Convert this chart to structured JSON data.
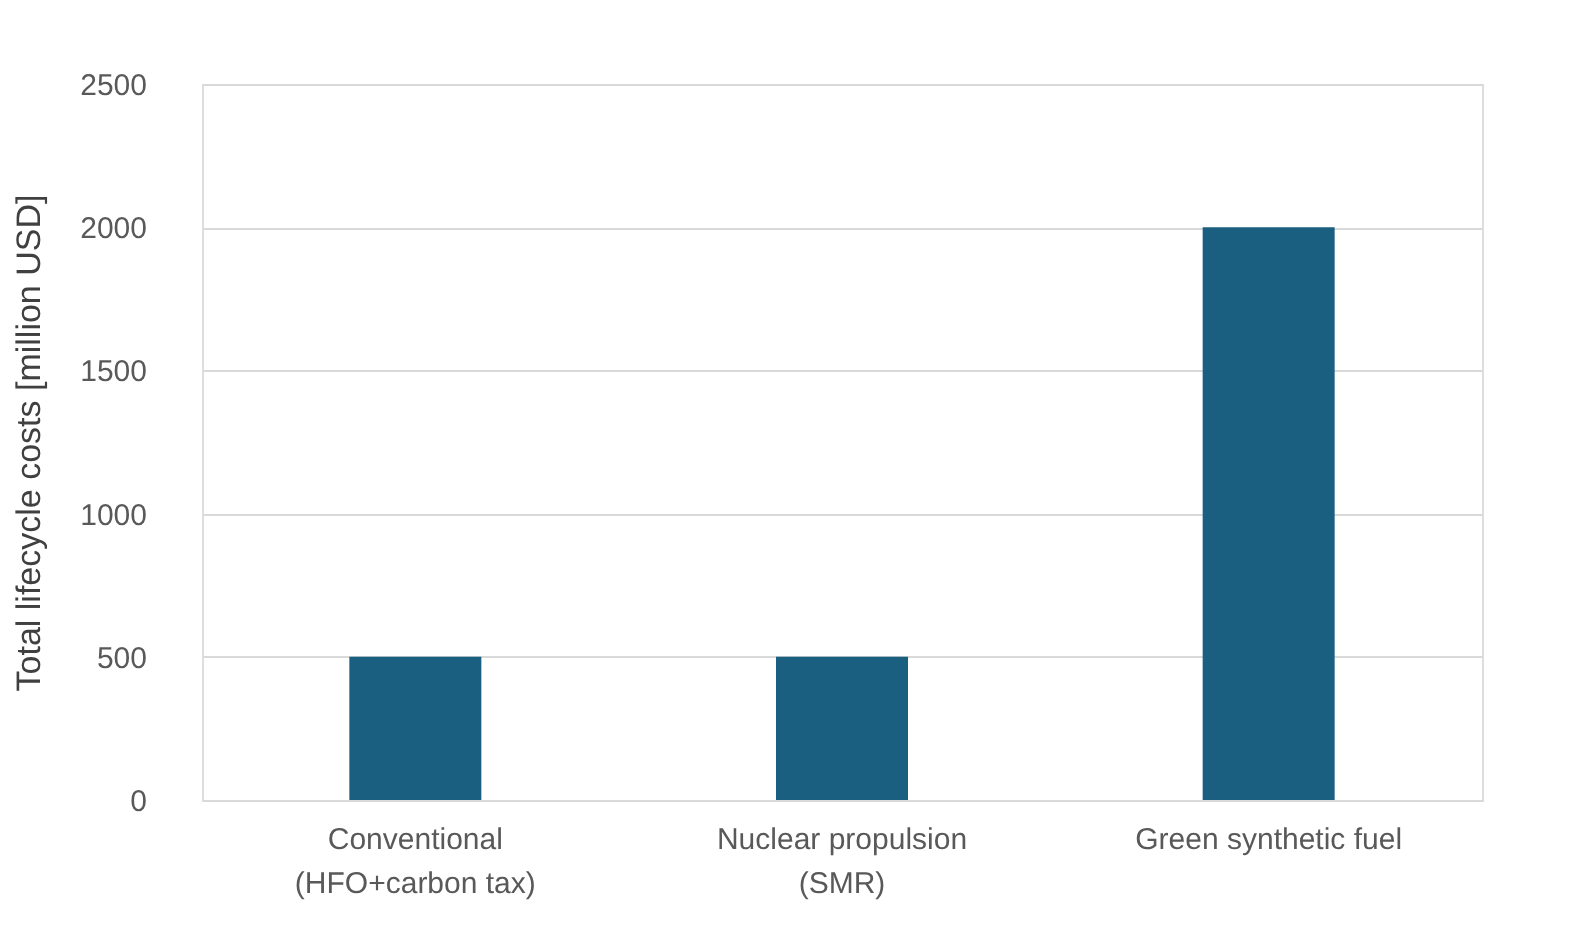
{
  "chart_data": {
    "type": "bar",
    "ylabel": "Total lifecycle costs [million USD]",
    "categories": [
      "Conventional\n(HFO+carbon tax)",
      "Nuclear propulsion\n(SMR)",
      "Green synthetic fuel"
    ],
    "values": [
      500,
      500,
      2000
    ],
    "color": "#1a5f80",
    "ylim": [
      0,
      2500
    ],
    "yticks": [
      0,
      500,
      1000,
      1500,
      2000,
      2500
    ],
    "grid": "y"
  }
}
